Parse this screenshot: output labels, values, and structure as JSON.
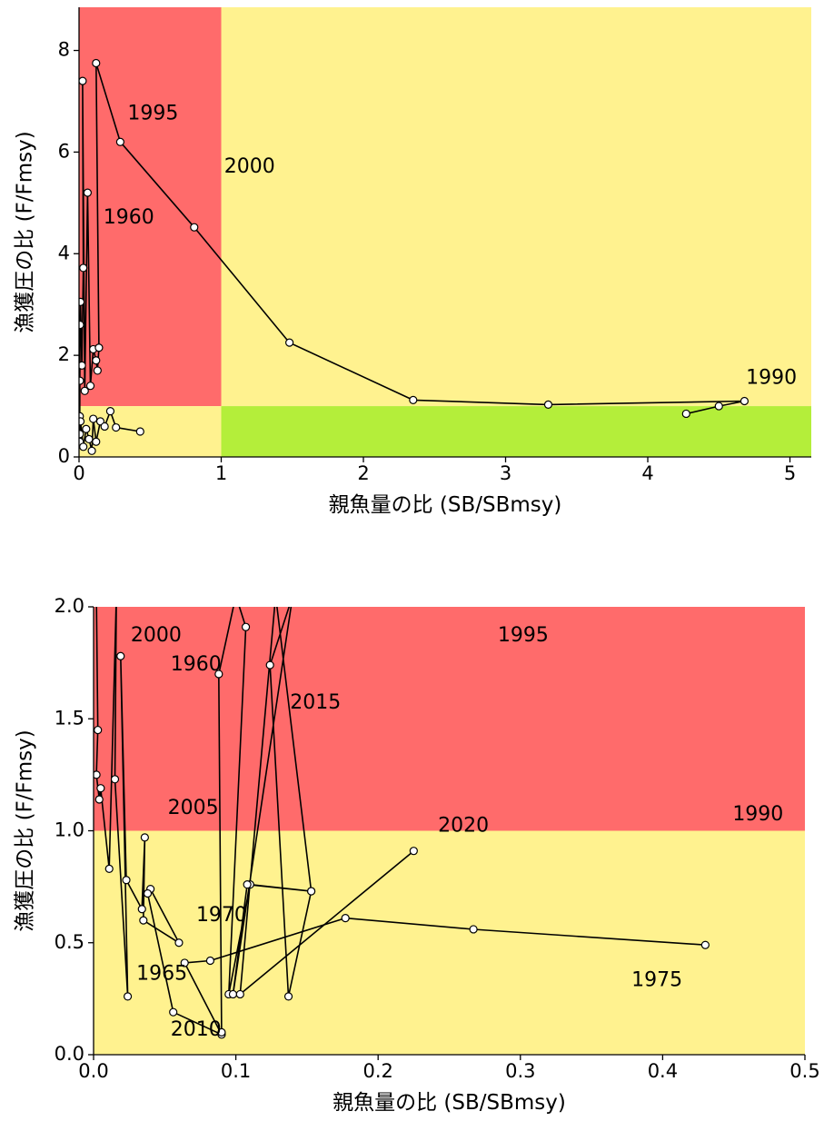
{
  "colors": {
    "red_zone": "#ff6b6b",
    "yellow_zone": "#fff28f",
    "green_zone": "#b4ee3a",
    "line": "#000000",
    "point_fill": "#ffffff",
    "leader": "#b4b4b4"
  },
  "chart_data": [
    {
      "type": "scatter",
      "id": "kobe-plot-full",
      "xlabel": "親魚量の比 (SB/SBmsy)",
      "ylabel": "漁獲圧の比 (F/Fmsy)",
      "xlim": [
        0,
        5.15
      ],
      "ylim": [
        0,
        8.85
      ],
      "x_ticks": [
        0,
        1,
        2,
        3,
        4,
        5
      ],
      "x_tick_labels": [
        "0",
        "1",
        "2",
        "3",
        "4",
        "5"
      ],
      "y_ticks": [
        0,
        2,
        4,
        6,
        8
      ],
      "y_tick_labels": [
        "0",
        "2",
        "4",
        "6",
        "8"
      ],
      "zones": [
        {
          "name": "overfished-overfishing",
          "x": [
            0,
            1
          ],
          "y": [
            1,
            8.85
          ],
          "color": "red"
        },
        {
          "name": "overfished",
          "x": [
            0,
            1
          ],
          "y": [
            0,
            1
          ],
          "color": "yellow"
        },
        {
          "name": "overfishing",
          "x": [
            1,
            5.15
          ],
          "y": [
            1,
            8.85
          ],
          "color": "yellow"
        },
        {
          "name": "healthy",
          "x": [
            1,
            5.15
          ],
          "y": [
            0,
            1
          ],
          "color": "green"
        }
      ],
      "series": [
        {
          "points": [
            [
              0.005,
              0.3
            ],
            [
              0.005,
              0.8
            ],
            [
              0.006,
              1.5
            ],
            [
              0.007,
              2.6
            ],
            [
              0.01,
              3.05
            ],
            [
              0.02,
              1.8
            ],
            [
              0.03,
              3.72
            ],
            [
              0.025,
              7.4
            ],
            [
              0.04,
              1.3
            ],
            [
              0.06,
              5.2
            ],
            [
              0.08,
              1.4
            ],
            [
              0.1,
              2.12
            ],
            [
              0.12,
              1.9
            ],
            [
              0.13,
              1.7
            ],
            [
              0.14,
              2.15
            ],
            [
              0.12,
              7.75
            ],
            [
              0.29,
              6.2
            ],
            [
              0.81,
              4.52
            ],
            [
              1.48,
              2.25
            ],
            [
              2.35,
              1.12
            ],
            [
              3.3,
              1.03
            ],
            [
              4.68,
              1.1
            ],
            [
              4.5,
              1.0
            ],
            [
              4.27,
              0.85
            ]
          ]
        },
        {
          "points": [
            [
              0.005,
              0.45
            ],
            [
              0.01,
              0.7
            ],
            [
              0.03,
              0.2
            ],
            [
              0.05,
              0.55
            ],
            [
              0.07,
              0.35
            ],
            [
              0.09,
              0.12
            ],
            [
              0.1,
              0.75
            ],
            [
              0.12,
              0.3
            ],
            [
              0.15,
              0.7
            ],
            [
              0.18,
              0.6
            ],
            [
              0.22,
              0.9
            ],
            [
              0.26,
              0.58
            ],
            [
              0.43,
              0.5
            ]
          ]
        }
      ],
      "labels": [
        {
          "text": "1995",
          "x": 0.52,
          "y": 6.75
        },
        {
          "text": "2000",
          "x": 1.2,
          "y": 5.7
        },
        {
          "text": "1960",
          "x": 0.35,
          "y": 4.7
        },
        {
          "text": "1990",
          "x": 4.87,
          "y": 1.55
        }
      ]
    },
    {
      "type": "line",
      "id": "kobe-plot-zoom",
      "xlabel": "親魚量の比 (SB/SBmsy)",
      "ylabel": "漁獲圧の比 (F/Fmsy)",
      "xlim": [
        0,
        0.5
      ],
      "ylim": [
        0,
        2.0
      ],
      "x_ticks": [
        0,
        0.1,
        0.2,
        0.3,
        0.4,
        0.5
      ],
      "x_tick_labels": [
        "0.0",
        "0.1",
        "0.2",
        "0.3",
        "0.4",
        "0.5"
      ],
      "y_ticks": [
        0,
        0.5,
        1.0,
        1.5,
        2.0
      ],
      "y_tick_labels": [
        "0.0",
        "0.5",
        "1.0",
        "1.5",
        "2.0"
      ],
      "zones": [
        {
          "name": "overfished-overfishing",
          "x": [
            0,
            0.5
          ],
          "y": [
            1,
            2
          ],
          "color": "red"
        },
        {
          "name": "overfished",
          "x": [
            0,
            0.5
          ],
          "y": [
            0,
            1
          ],
          "color": "yellow"
        }
      ],
      "series": [
        {
          "points": [
            [
              0.002,
              2.05
            ],
            [
              0.003,
              1.45
            ],
            [
              0.002,
              1.25
            ],
            [
              0.004,
              1.14
            ],
            [
              0.005,
              1.19
            ],
            [
              0.011,
              0.83
            ],
            [
              0.016,
              2.05
            ],
            [
              0.015,
              1.23
            ],
            [
              0.024,
              0.26
            ],
            [
              0.019,
              1.78
            ],
            [
              0.023,
              0.78
            ],
            [
              0.034,
              0.65
            ],
            [
              0.036,
              0.97
            ],
            [
              0.035,
              0.6
            ],
            [
              0.06,
              0.5
            ],
            [
              0.04,
              0.74
            ],
            [
              0.038,
              0.72
            ],
            [
              0.056,
              0.19
            ],
            [
              0.09,
              0.09
            ],
            [
              0.064,
              0.41
            ],
            [
              0.082,
              0.42
            ],
            [
              0.177,
              0.61
            ],
            [
              0.267,
              0.56
            ],
            [
              0.43,
              0.49
            ]
          ]
        },
        {
          "points": [
            [
              0.09,
              0.1
            ],
            [
              0.088,
              1.7
            ],
            [
              0.1,
              2.05
            ],
            [
              0.107,
              1.91
            ],
            [
              0.095,
              0.27
            ],
            [
              0.11,
              0.76
            ],
            [
              0.153,
              0.73
            ],
            [
              0.108,
              0.76
            ],
            [
              0.098,
              0.27
            ],
            [
              0.14,
              2.05
            ],
            [
              0.124,
              1.74
            ],
            [
              0.137,
              0.26
            ],
            [
              0.153,
              0.73
            ],
            [
              0.128,
              2.05
            ],
            [
              0.103,
              0.27
            ],
            [
              0.225,
              0.91
            ]
          ]
        }
      ],
      "labels": [
        {
          "text": "2000",
          "x": 0.044,
          "y": 1.87
        },
        {
          "text": "1995",
          "x": 0.302,
          "y": 1.87
        },
        {
          "text": "1960",
          "x": 0.072,
          "y": 1.74
        },
        {
          "text": "2015",
          "x": 0.156,
          "y": 1.57
        },
        {
          "text": "2005",
          "x": 0.07,
          "y": 1.1
        },
        {
          "text": "1990",
          "x": 0.467,
          "y": 1.07
        },
        {
          "text": "2020",
          "x": 0.26,
          "y": 1.02
        },
        {
          "text": "1970",
          "x": 0.09,
          "y": 0.62
        },
        {
          "text": "1965",
          "x": 0.048,
          "y": 0.36
        },
        {
          "text": "1975",
          "x": 0.396,
          "y": 0.33
        },
        {
          "text": "2010",
          "x": 0.072,
          "y": 0.11
        }
      ]
    }
  ]
}
